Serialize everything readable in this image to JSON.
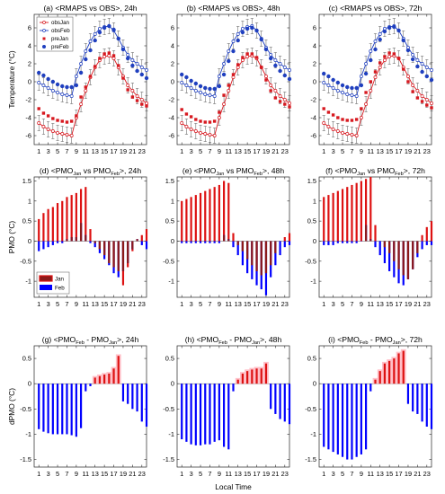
{
  "figure": {
    "xlabel": "Local Time",
    "row_ylabels": [
      "Temperature (°C)",
      "PMO (°C)",
      "dPMO (°C)"
    ],
    "hour_tick_labels": [
      "1",
      "3",
      "5",
      "7",
      "9",
      "11",
      "13",
      "15",
      "17",
      "19",
      "21",
      "23"
    ],
    "colors": {
      "jan_line": "#d71920",
      "feb_line": "#1f3fbf",
      "jan_bar": "#dd1111",
      "feb_bar": "#0000ff",
      "overlap": "#8b1a1a",
      "diff_pos": "#dd1111",
      "diff_neg": "#0000ff",
      "diff_pos_glow": "#ffc0c8"
    }
  },
  "chart_data": [
    {
      "panel": "a",
      "type": "line",
      "title": "(a) <RMAPS vs OBS>, 24h",
      "title_parts": [
        [
          "(a) <RMAPS vs OBS>, 24h",
          ""
        ]
      ],
      "ylabel": "Temperature (°C)",
      "xlabel": "",
      "xlim": [
        0,
        24
      ],
      "ylim": [
        -7,
        7.5
      ],
      "yticks": [
        -6,
        -4,
        -2,
        0,
        2,
        4,
        6
      ],
      "legend": [
        "obsJan",
        "obsFeb",
        "preJan",
        "preFeb"
      ],
      "legend_pos": "top-left",
      "x": [
        1,
        2,
        3,
        4,
        5,
        6,
        7,
        8,
        9,
        10,
        11,
        12,
        13,
        14,
        15,
        16,
        17,
        18,
        19,
        20,
        21,
        22,
        23,
        24
      ],
      "series": [
        {
          "name": "obsJan",
          "style": "line-open-circle",
          "values": [
            -4.6,
            -5.0,
            -5.3,
            -5.5,
            -5.7,
            -5.8,
            -5.9,
            -6.0,
            -4.0,
            -2.5,
            -1.0,
            0.5,
            1.6,
            2.4,
            2.8,
            2.9,
            2.6,
            1.6,
            0.6,
            -0.4,
            -1.0,
            -1.6,
            -2.0,
            -2.4
          ]
        },
        {
          "name": "obsFeb",
          "style": "line-open-circle",
          "values": [
            -0.1,
            -0.4,
            -0.7,
            -1.0,
            -1.2,
            -1.4,
            -1.5,
            -1.6,
            0.6,
            2.0,
            3.4,
            4.5,
            5.3,
            5.9,
            6.1,
            6.2,
            5.7,
            4.8,
            3.8,
            3.0,
            2.4,
            2.0,
            1.6,
            1.3
          ]
        },
        {
          "name": "preJan",
          "style": "square",
          "values": [
            -3.0,
            -3.5,
            -3.8,
            -4.1,
            -4.3,
            -4.4,
            -4.5,
            -4.4,
            -3.8,
            -1.7,
            -0.6,
            0.6,
            1.7,
            2.6,
            3.1,
            3.2,
            2.9,
            1.8,
            0.4,
            -0.9,
            -1.7,
            -2.1,
            -2.5,
            -2.7
          ]
        },
        {
          "name": "preFeb",
          "style": "dot",
          "values": [
            1.0,
            0.7,
            0.3,
            0.0,
            -0.3,
            -0.5,
            -0.6,
            -0.6,
            -0.4,
            1.0,
            2.5,
            3.5,
            4.6,
            5.5,
            6.0,
            6.2,
            5.8,
            4.8,
            3.6,
            2.6,
            1.8,
            1.2,
            0.8,
            0.4
          ]
        }
      ]
    },
    {
      "panel": "b",
      "type": "line",
      "title": "(b) <RMAPS vs OBS>, 48h",
      "title_parts": [
        [
          "(b) <RMAPS vs OBS>, 48h",
          ""
        ]
      ],
      "ylabel": "",
      "xlabel": "",
      "xlim": [
        0,
        24
      ],
      "ylim": [
        -7,
        7.5
      ],
      "yticks": [
        -6,
        -4,
        -2,
        0,
        2,
        4,
        6
      ],
      "x": [
        1,
        2,
        3,
        4,
        5,
        6,
        7,
        8,
        9,
        10,
        11,
        12,
        13,
        14,
        15,
        16,
        17,
        18,
        19,
        20,
        21,
        22,
        23,
        24
      ],
      "series": [
        {
          "name": "obsJan",
          "style": "line-open-circle",
          "values": [
            -4.6,
            -5.0,
            -5.3,
            -5.5,
            -5.7,
            -5.8,
            -5.9,
            -6.0,
            -4.0,
            -2.5,
            -1.0,
            0.5,
            1.6,
            2.4,
            2.8,
            2.9,
            2.6,
            1.6,
            0.6,
            -0.4,
            -1.0,
            -1.6,
            -2.0,
            -2.4
          ]
        },
        {
          "name": "obsFeb",
          "style": "line-open-circle",
          "values": [
            -0.1,
            -0.4,
            -0.7,
            -1.0,
            -1.2,
            -1.4,
            -1.5,
            -1.6,
            0.6,
            2.0,
            3.4,
            4.5,
            5.3,
            5.9,
            6.1,
            6.2,
            5.7,
            4.8,
            3.8,
            3.0,
            2.4,
            2.0,
            1.6,
            1.3
          ]
        },
        {
          "name": "preJan",
          "style": "square",
          "values": [
            -3.1,
            -3.6,
            -3.9,
            -4.2,
            -4.4,
            -4.5,
            -4.5,
            -4.4,
            -3.4,
            -1.5,
            -0.4,
            0.8,
            1.9,
            2.7,
            3.1,
            3.1,
            2.7,
            1.6,
            0.2,
            -1.0,
            -1.8,
            -2.2,
            -2.5,
            -2.8
          ]
        },
        {
          "name": "preFeb",
          "style": "dot",
          "values": [
            0.8,
            0.5,
            0.1,
            -0.2,
            -0.5,
            -0.7,
            -0.8,
            -0.8,
            -0.5,
            0.8,
            2.3,
            3.4,
            4.6,
            5.5,
            5.9,
            6.0,
            5.7,
            4.7,
            3.6,
            2.6,
            1.8,
            1.2,
            0.7,
            0.3
          ]
        }
      ]
    },
    {
      "panel": "c",
      "type": "line",
      "title": "(c) <RMAPS vs OBS>, 72h",
      "title_parts": [
        [
          "(c) <RMAPS vs OBS>, 72h",
          ""
        ]
      ],
      "ylabel": "",
      "xlabel": "",
      "xlim": [
        0,
        24
      ],
      "ylim": [
        -7,
        7.5
      ],
      "yticks": [
        -6,
        -4,
        -2,
        0,
        2,
        4,
        6
      ],
      "x": [
        1,
        2,
        3,
        4,
        5,
        6,
        7,
        8,
        9,
        10,
        11,
        12,
        13,
        14,
        15,
        16,
        17,
        18,
        19,
        20,
        21,
        22,
        23,
        24
      ],
      "series": [
        {
          "name": "obsJan",
          "style": "line-open-circle",
          "values": [
            -4.6,
            -5.0,
            -5.3,
            -5.5,
            -5.7,
            -5.8,
            -5.9,
            -6.0,
            -4.0,
            -2.5,
            -1.0,
            0.5,
            1.6,
            2.4,
            2.8,
            2.9,
            2.6,
            1.6,
            0.6,
            -0.4,
            -1.0,
            -1.6,
            -2.0,
            -2.4
          ]
        },
        {
          "name": "obsFeb",
          "style": "line-open-circle",
          "values": [
            -0.1,
            -0.4,
            -0.7,
            -1.0,
            -1.2,
            -1.4,
            -1.5,
            -1.6,
            0.6,
            2.0,
            3.4,
            4.5,
            5.3,
            5.9,
            6.1,
            6.2,
            5.7,
            4.8,
            3.8,
            3.0,
            2.4,
            2.0,
            1.6,
            1.3
          ]
        },
        {
          "name": "preJan",
          "style": "square",
          "values": [
            -3.0,
            -3.4,
            -3.7,
            -4.0,
            -4.2,
            -4.3,
            -4.3,
            -4.2,
            -3.0,
            -1.2,
            0.0,
            1.1,
            2.1,
            2.8,
            3.2,
            3.1,
            2.6,
            1.4,
            0.0,
            -1.1,
            -1.8,
            -2.2,
            -2.6,
            -2.9
          ]
        },
        {
          "name": "preFeb",
          "style": "dot",
          "values": [
            0.9,
            0.6,
            0.2,
            -0.1,
            -0.4,
            -0.6,
            -0.7,
            -0.7,
            -0.4,
            0.9,
            2.4,
            3.6,
            4.7,
            5.6,
            6.0,
            6.1,
            5.7,
            4.6,
            3.5,
            2.5,
            1.7,
            1.1,
            0.6,
            0.2
          ]
        }
      ]
    },
    {
      "panel": "d",
      "type": "bar",
      "title": "(d) <PMO_Jan vs PMO_Feb>, 24h",
      "title_parts": [
        [
          "(d) <PMO",
          ""
        ],
        [
          "Jan",
          "sub"
        ],
        [
          " vs PMO",
          ""
        ],
        [
          "Feb",
          "sub"
        ],
        [
          ">, 24h",
          ""
        ]
      ],
      "ylabel": "PMO (°C)",
      "xlabel": "",
      "xlim": [
        0,
        24
      ],
      "ylim": [
        -1.4,
        1.6
      ],
      "yticks": [
        -1,
        -0.5,
        0,
        0.5,
        1,
        1.5
      ],
      "legend": [
        "Jan",
        "Feb"
      ],
      "legend_pos": "bottom-left",
      "x": [
        1,
        2,
        3,
        4,
        5,
        6,
        7,
        8,
        9,
        10,
        11,
        12,
        13,
        14,
        15,
        16,
        17,
        18,
        19,
        20,
        21,
        22,
        23,
        24
      ],
      "series": [
        {
          "name": "Jan",
          "values": [
            0.55,
            0.7,
            0.8,
            0.85,
            0.95,
            1.0,
            1.1,
            1.15,
            1.2,
            1.3,
            1.35,
            0.3,
            -0.05,
            -0.2,
            -0.35,
            -0.55,
            -0.65,
            -0.75,
            -1.1,
            -0.65,
            -0.25,
            0.05,
            0.15,
            0.3
          ]
        },
        {
          "name": "Feb",
          "values": [
            -0.25,
            -0.2,
            -0.15,
            -0.1,
            -0.05,
            -0.05,
            0.05,
            0.1,
            0.1,
            0.45,
            0.15,
            -0.05,
            -0.15,
            -0.3,
            -0.45,
            -0.6,
            -0.8,
            -0.9,
            -0.75,
            -0.55,
            -0.2,
            0.05,
            -0.1,
            -0.2
          ]
        }
      ]
    },
    {
      "panel": "e",
      "type": "bar",
      "title": "(e) <PMO_Jan vs PMO_Feb>, 48h",
      "title_parts": [
        [
          "(e) <PMO",
          ""
        ],
        [
          "Jan",
          "sub"
        ],
        [
          " vs PMO",
          ""
        ],
        [
          "Feb",
          "sub"
        ],
        [
          ">, 48h",
          ""
        ]
      ],
      "ylabel": "",
      "xlabel": "",
      "xlim": [
        0,
        24
      ],
      "ylim": [
        -1.4,
        1.6
      ],
      "yticks": [
        -1,
        -0.5,
        0,
        0.5,
        1,
        1.5
      ],
      "x": [
        1,
        2,
        3,
        4,
        5,
        6,
        7,
        8,
        9,
        10,
        11,
        12,
        13,
        14,
        15,
        16,
        17,
        18,
        19,
        20,
        21,
        22,
        23,
        24
      ],
      "series": [
        {
          "name": "Jan",
          "values": [
            1.0,
            1.05,
            1.1,
            1.15,
            1.2,
            1.25,
            1.3,
            1.35,
            1.4,
            1.5,
            1.45,
            0.2,
            -0.1,
            -0.25,
            -0.45,
            -0.6,
            -0.75,
            -0.85,
            -0.8,
            -0.6,
            -0.3,
            0.0,
            0.1,
            0.2
          ]
        },
        {
          "name": "Feb",
          "values": [
            -0.05,
            -0.05,
            -0.05,
            -0.05,
            -0.05,
            -0.05,
            -0.05,
            -0.05,
            -0.05,
            0.15,
            0.05,
            -0.15,
            -0.35,
            -0.6,
            -0.8,
            -0.95,
            -1.1,
            -1.2,
            -1.35,
            -0.9,
            -0.6,
            -0.35,
            -0.15,
            -0.1
          ]
        }
      ]
    },
    {
      "panel": "f",
      "type": "bar",
      "title": "(f) <PMO_Jan vs PMO_Feb>, 72h",
      "title_parts": [
        [
          "(f) <PMO",
          ""
        ],
        [
          "Jan",
          "sub"
        ],
        [
          " vs PMO",
          ""
        ],
        [
          "Feb",
          "sub"
        ],
        [
          ">, 72h",
          ""
        ]
      ],
      "ylabel": "",
      "xlabel": "",
      "xlim": [
        0,
        24
      ],
      "ylim": [
        -1.4,
        1.6
      ],
      "yticks": [
        -1,
        -0.5,
        0,
        0.5,
        1,
        1.5
      ],
      "x": [
        1,
        2,
        3,
        4,
        5,
        6,
        7,
        8,
        9,
        10,
        11,
        12,
        13,
        14,
        15,
        16,
        17,
        18,
        19,
        20,
        21,
        22,
        23,
        24
      ],
      "series": [
        {
          "name": "Jan",
          "values": [
            1.1,
            1.15,
            1.2,
            1.25,
            1.3,
            1.35,
            1.4,
            1.45,
            1.5,
            1.55,
            1.6,
            0.4,
            0.0,
            -0.15,
            -0.3,
            -0.5,
            -0.7,
            -0.85,
            -0.95,
            -0.7,
            -0.3,
            0.15,
            0.35,
            0.5
          ]
        },
        {
          "name": "Feb",
          "values": [
            -0.1,
            -0.1,
            -0.1,
            -0.05,
            -0.05,
            -0.05,
            -0.05,
            -0.05,
            0.0,
            0.4,
            0.05,
            -0.15,
            -0.35,
            -0.55,
            -0.75,
            -0.9,
            -1.05,
            -1.1,
            -0.95,
            -0.7,
            -0.4,
            -0.2,
            -0.1,
            -0.1
          ]
        }
      ]
    },
    {
      "panel": "g",
      "type": "bar",
      "title": "(g) <PMO_Feb - PMO_Jan>, 24h",
      "title_parts": [
        [
          "(g) <PMO",
          ""
        ],
        [
          "Feb",
          "sub"
        ],
        [
          " - PMO",
          ""
        ],
        [
          "Jan",
          "sub"
        ],
        [
          ">, 24h",
          ""
        ]
      ],
      "ylabel": "dPMO (°C)",
      "xlabel": "",
      "xlim": [
        0,
        24
      ],
      "ylim": [
        -1.65,
        0.75
      ],
      "yticks": [
        -1.5,
        -1,
        -0.5,
        0,
        0.5
      ],
      "x": [
        1,
        2,
        3,
        4,
        5,
        6,
        7,
        8,
        9,
        10,
        11,
        12,
        13,
        14,
        15,
        16,
        17,
        18,
        19,
        20,
        21,
        22,
        23,
        24
      ],
      "series": [
        {
          "name": "dPMO",
          "values": [
            -0.9,
            -0.95,
            -0.98,
            -1.0,
            -1.0,
            -1.0,
            -1.0,
            -1.02,
            -1.05,
            -0.88,
            -0.15,
            -0.05,
            0.12,
            0.15,
            0.18,
            0.2,
            0.3,
            0.55,
            -0.35,
            -0.4,
            -0.5,
            -0.55,
            -0.75,
            -0.85
          ]
        }
      ]
    },
    {
      "panel": "h",
      "type": "bar",
      "title": "(h) <PMO_Feb - PMO_Jan>, 48h",
      "title_parts": [
        [
          "(h) <PMO",
          ""
        ],
        [
          "Feb",
          "sub"
        ],
        [
          " - PMO",
          ""
        ],
        [
          "Jan",
          "sub"
        ],
        [
          ">, 48h",
          ""
        ]
      ],
      "ylabel": "",
      "xlabel": "Local Time",
      "xlim": [
        0,
        24
      ],
      "ylim": [
        -1.65,
        0.75
      ],
      "yticks": [
        -1.5,
        -1,
        -0.5,
        0,
        0.5
      ],
      "x": [
        1,
        2,
        3,
        4,
        5,
        6,
        7,
        8,
        9,
        10,
        11,
        12,
        13,
        14,
        15,
        16,
        17,
        18,
        19,
        20,
        21,
        22,
        23,
        24
      ],
      "series": [
        {
          "name": "dPMO",
          "values": [
            -1.1,
            -1.15,
            -1.2,
            -1.22,
            -1.22,
            -1.2,
            -1.2,
            -1.15,
            -1.12,
            -1.25,
            -1.3,
            -0.15,
            0.08,
            0.2,
            0.25,
            0.28,
            0.3,
            0.3,
            0.4,
            -0.5,
            -0.6,
            -0.7,
            -0.75,
            -0.8
          ]
        }
      ]
    },
    {
      "panel": "i",
      "type": "bar",
      "title": "(i) <PMO_Feb - PMO_Jan>, 72h",
      "title_parts": [
        [
          "(i) <PMO",
          ""
        ],
        [
          "Feb",
          "sub"
        ],
        [
          " - PMO",
          ""
        ],
        [
          "Jan",
          "sub"
        ],
        [
          ">, 72h",
          ""
        ]
      ],
      "ylabel": "",
      "xlabel": "",
      "xlim": [
        0,
        24
      ],
      "ylim": [
        -1.65,
        0.75
      ],
      "yticks": [
        -1.5,
        -1,
        -0.5,
        0,
        0.5
      ],
      "x": [
        1,
        2,
        3,
        4,
        5,
        6,
        7,
        8,
        9,
        10,
        11,
        12,
        13,
        14,
        15,
        16,
        17,
        18,
        19,
        20,
        21,
        22,
        23,
        24
      ],
      "series": [
        {
          "name": "dPMO",
          "values": [
            -1.25,
            -1.3,
            -1.35,
            -1.4,
            -1.45,
            -1.5,
            -1.5,
            -1.45,
            -1.4,
            -1.3,
            -0.15,
            0.08,
            0.25,
            0.4,
            0.45,
            0.5,
            0.6,
            0.65,
            -0.4,
            -0.55,
            -0.6,
            -0.75,
            -0.85,
            -0.9
          ]
        }
      ]
    }
  ]
}
